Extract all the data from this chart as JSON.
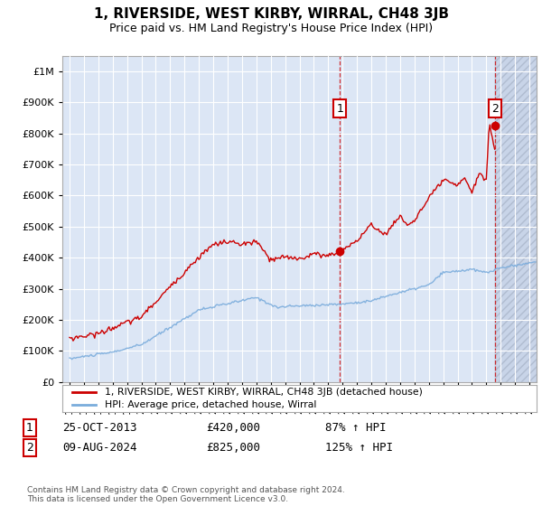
{
  "title": "1, RIVERSIDE, WEST KIRBY, WIRRAL, CH48 3JB",
  "subtitle": "Price paid vs. HM Land Registry's House Price Index (HPI)",
  "legend_label1": "1, RIVERSIDE, WEST KIRBY, WIRRAL, CH48 3JB (detached house)",
  "legend_label2": "HPI: Average price, detached house, Wirral",
  "point1_label": "1",
  "point1_date": "25-OCT-2013",
  "point1_price": "£420,000",
  "point1_hpi": "87% ↑ HPI",
  "point1_year": 2013.82,
  "point1_value": 420000,
  "point2_label": "2",
  "point2_date": "09-AUG-2024",
  "point2_price": "£825,000",
  "point2_hpi": "125% ↑ HPI",
  "point2_year": 2024.61,
  "point2_value": 825000,
  "line1_color": "#cc0000",
  "line2_color": "#7aacdc",
  "background_color": "#ffffff",
  "plot_bg_color": "#dce6f5",
  "hatch_bg_color": "#c8d4e8",
  "grid_color": "#ffffff",
  "footnote": "Contains HM Land Registry data © Crown copyright and database right 2024.\nThis data is licensed under the Open Government Licence v3.0.",
  "ylim_max": 1050000,
  "xlim_min": 1994.5,
  "xlim_max": 2027.5
}
